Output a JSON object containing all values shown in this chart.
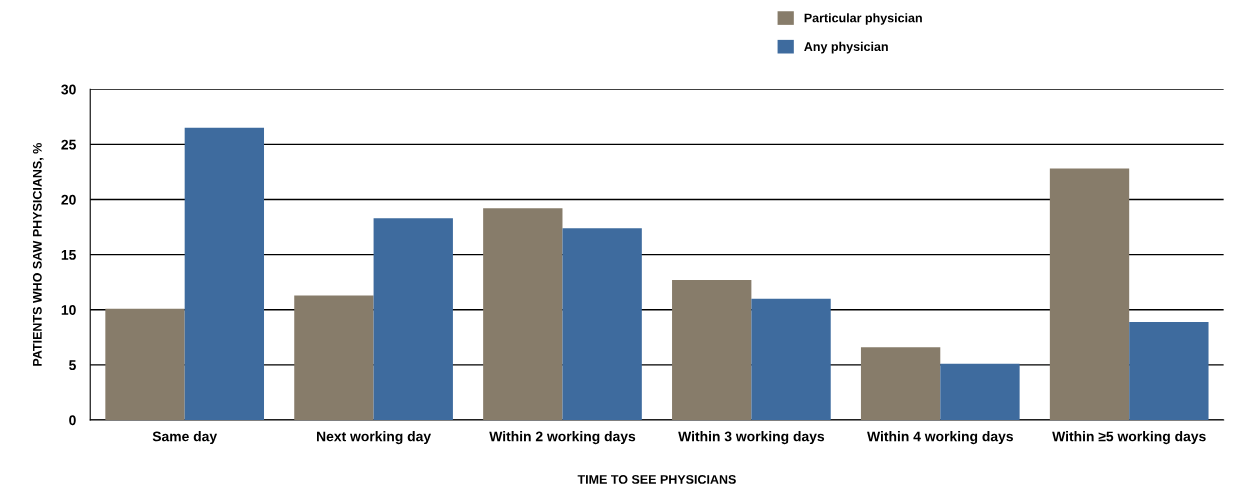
{
  "chart_data": {
    "type": "bar",
    "xlabel": "TIME TO SEE PHYSICIANS",
    "ylabel": "PATIENTS WHO SAW PHYSICIANS, %",
    "categories": [
      "Same day",
      "Next working day",
      "Within 2 working days",
      "Within 3 working days",
      "Within 4 working days",
      "Within ≥5 working days"
    ],
    "series": [
      {
        "name": "Particular physician",
        "color": "#877c6a",
        "values": [
          10.1,
          11.3,
          19.2,
          12.7,
          6.6,
          22.8
        ]
      },
      {
        "name": "Any physician",
        "color": "#3e6b9e",
        "values": [
          26.5,
          18.3,
          17.4,
          11.0,
          5.1,
          8.9
        ]
      }
    ],
    "ylim": [
      0,
      30
    ],
    "yticks": [
      0,
      5,
      10,
      15,
      20,
      25,
      30
    ],
    "grid": "y",
    "legend": "top right"
  }
}
